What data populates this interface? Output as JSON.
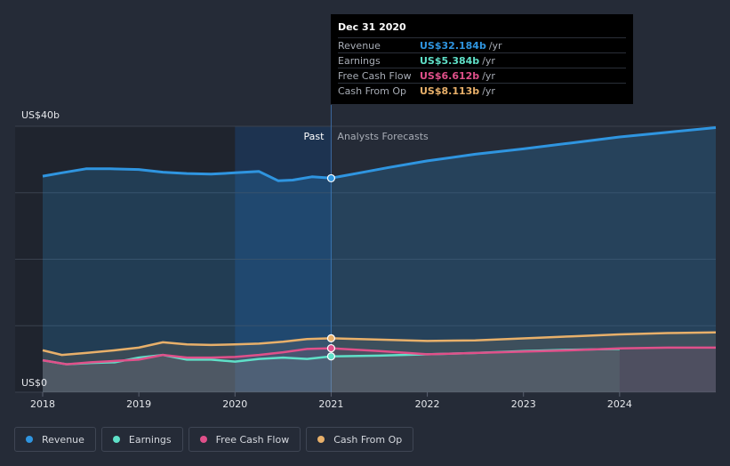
{
  "colors": {
    "revenue": "#2f95e0",
    "earnings": "#5fe0c8",
    "free_cash_flow": "#e0508a",
    "cash_from_op": "#e8b06a"
  },
  "tooltip": {
    "date": "Dec 31 2020",
    "rows": [
      {
        "label": "Revenue",
        "value": "US$32.184b",
        "unit": "/yr",
        "color": "#2f95e0"
      },
      {
        "label": "Earnings",
        "value": "US$5.384b",
        "unit": "/yr",
        "color": "#5fe0c8"
      },
      {
        "label": "Free Cash Flow",
        "value": "US$6.612b",
        "unit": "/yr",
        "color": "#e0508a"
      },
      {
        "label": "Cash From Op",
        "value": "US$8.113b",
        "unit": "/yr",
        "color": "#e8b06a"
      }
    ]
  },
  "legend": [
    {
      "label": "Revenue",
      "color": "#2f95e0"
    },
    {
      "label": "Earnings",
      "color": "#5fe0c8"
    },
    {
      "label": "Free Cash Flow",
      "color": "#e0508a"
    },
    {
      "label": "Cash From Op",
      "color": "#e8b06a"
    }
  ],
  "chart_data": {
    "type": "area",
    "title": "",
    "ylabel": "",
    "xlabel": "",
    "ylim": [
      0,
      40
    ],
    "y_ticks": [
      {
        "value": 40,
        "label": "US$40b"
      },
      {
        "value": 0,
        "label": "US$0"
      }
    ],
    "x_ticks": [
      2018,
      2019,
      2020,
      2021,
      2022,
      2023,
      2024
    ],
    "xlim": [
      2018,
      2025
    ],
    "past_label": "Past",
    "forecast_label": "Analysts Forecasts",
    "divider_x": 2021,
    "highlight_start": 2020,
    "series": [
      {
        "name": "Revenue",
        "key": "revenue",
        "x": [
          2018,
          2018.2,
          2018.45,
          2018.7,
          2019,
          2019.25,
          2019.5,
          2019.75,
          2020,
          2020.25,
          2020.45,
          2020.6,
          2020.8,
          2021,
          2021.3,
          2021.6,
          2022,
          2022.5,
          2023,
          2023.5,
          2024,
          2024.5,
          2025
        ],
        "values": [
          32.5,
          33.0,
          33.6,
          33.6,
          33.5,
          33.1,
          32.9,
          32.8,
          33.0,
          33.2,
          31.8,
          31.9,
          32.4,
          32.2,
          33.0,
          33.8,
          34.8,
          35.8,
          36.6,
          37.5,
          38.4,
          39.1,
          39.8
        ]
      },
      {
        "name": "Earnings",
        "key": "earnings",
        "x": [
          2018,
          2018.25,
          2018.5,
          2018.75,
          2019,
          2019.25,
          2019.5,
          2019.75,
          2020,
          2020.25,
          2020.5,
          2020.75,
          2021,
          2021.5,
          2022,
          2022.5,
          2023,
          2023.5,
          2024
        ],
        "values": [
          4.8,
          4.2,
          4.4,
          4.5,
          5.2,
          5.6,
          4.9,
          4.9,
          4.6,
          5.0,
          5.2,
          5.0,
          5.384,
          5.5,
          5.7,
          5.9,
          6.2,
          6.4,
          6.5
        ]
      },
      {
        "name": "Free Cash Flow",
        "key": "free_cash_flow",
        "x": [
          2018,
          2018.25,
          2018.5,
          2018.75,
          2019,
          2019.25,
          2019.5,
          2019.75,
          2020,
          2020.25,
          2020.5,
          2020.75,
          2021,
          2021.5,
          2022,
          2022.5,
          2023,
          2023.5,
          2024,
          2024.5,
          2025
        ],
        "values": [
          4.8,
          4.2,
          4.5,
          4.7,
          4.9,
          5.6,
          5.2,
          5.2,
          5.3,
          5.6,
          6.0,
          6.5,
          6.612,
          6.2,
          5.7,
          5.9,
          6.1,
          6.3,
          6.6,
          6.7,
          6.7
        ]
      },
      {
        "name": "Cash From Op",
        "key": "cash_from_op",
        "x": [
          2018,
          2018.2,
          2018.45,
          2018.75,
          2019,
          2019.25,
          2019.5,
          2019.75,
          2020,
          2020.25,
          2020.5,
          2020.75,
          2021,
          2021.5,
          2022,
          2022.5,
          2023,
          2023.5,
          2024,
          2024.5,
          2025
        ],
        "values": [
          6.3,
          5.6,
          5.9,
          6.3,
          6.7,
          7.5,
          7.2,
          7.1,
          7.2,
          7.3,
          7.6,
          8.0,
          8.113,
          7.9,
          7.7,
          7.8,
          8.1,
          8.4,
          8.7,
          8.9,
          9.0
        ]
      }
    ],
    "markers": [
      {
        "key": "revenue",
        "x": 2021,
        "y": 32.184
      },
      {
        "key": "cash_from_op",
        "x": 2021,
        "y": 8.113
      },
      {
        "key": "free_cash_flow",
        "x": 2021,
        "y": 6.612
      },
      {
        "key": "earnings",
        "x": 2021,
        "y": 5.384
      }
    ]
  }
}
